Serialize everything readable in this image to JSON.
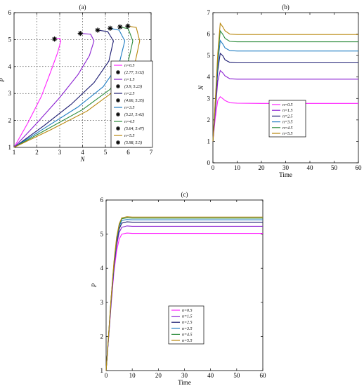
{
  "colors": [
    "#ff22ff",
    "#8a1fd1",
    "#1a1a70",
    "#1f7cc2",
    "#2a8a3a",
    "#b8860b"
  ],
  "chart_data": [
    {
      "id": "a",
      "type": "line",
      "title": "(a)",
      "xlabel": "N",
      "ylabel": "P",
      "xlim": [
        1,
        7
      ],
      "ylim": [
        1,
        6
      ],
      "xticks": [
        1,
        2,
        3,
        4,
        5,
        6,
        7
      ],
      "yticks": [
        1,
        2,
        3,
        4,
        5,
        6
      ],
      "grid": true,
      "legend_position": "right",
      "legend": [
        "n=0.5",
        "(2.77, 5.02)",
        "n=1.5",
        "(3.9, 5.23)",
        "n=2.5",
        "(4.66, 5.35)",
        "n=3.5",
        "(5.21, 5.42)",
        "n=4.5",
        "(5.64, 5.47)",
        "n=5.5",
        "(5.98, 5.5)"
      ],
      "series": [
        {
          "name": "n=0.5",
          "x": [
            1,
            1.6,
            2.2,
            2.6,
            2.9,
            3.05,
            3.0,
            2.77
          ],
          "y": [
            1,
            1.9,
            2.9,
            3.8,
            4.5,
            4.95,
            5.05,
            5.02
          ]
        },
        {
          "name": "n=1.5",
          "x": [
            1,
            2.0,
            3.0,
            3.8,
            4.3,
            4.5,
            4.35,
            3.9
          ],
          "y": [
            1,
            1.9,
            2.85,
            3.7,
            4.4,
            4.95,
            5.2,
            5.23
          ]
        },
        {
          "name": "n=2.5",
          "x": [
            1,
            2.3,
            3.5,
            4.5,
            5.15,
            5.35,
            5.1,
            4.66
          ],
          "y": [
            1,
            1.8,
            2.6,
            3.4,
            4.2,
            4.95,
            5.3,
            5.35
          ]
        },
        {
          "name": "n=3.5",
          "x": [
            1,
            2.4,
            3.8,
            4.9,
            5.6,
            5.85,
            5.6,
            5.21
          ],
          "y": [
            1,
            1.75,
            2.5,
            3.25,
            4.1,
            4.95,
            5.35,
            5.42
          ]
        },
        {
          "name": "n=4.5",
          "x": [
            1,
            2.5,
            4.0,
            5.2,
            5.95,
            6.2,
            6.0,
            5.64
          ],
          "y": [
            1,
            1.7,
            2.4,
            3.15,
            4.0,
            4.95,
            5.4,
            5.47
          ]
        },
        {
          "name": "n=5.5",
          "x": [
            1,
            2.6,
            4.2,
            5.4,
            6.25,
            6.5,
            6.35,
            5.98
          ],
          "y": [
            1,
            1.65,
            2.35,
            3.1,
            3.95,
            4.95,
            5.45,
            5.5
          ]
        }
      ],
      "equilibria": [
        {
          "label": "(2.77, 5.02)",
          "x": 2.77,
          "y": 5.02
        },
        {
          "label": "(3.9, 5.23)",
          "x": 3.9,
          "y": 5.23
        },
        {
          "label": "(4.66, 5.35)",
          "x": 4.66,
          "y": 5.35
        },
        {
          "label": "(5.21, 5.42)",
          "x": 5.21,
          "y": 5.42
        },
        {
          "label": "(5.64, 5.47)",
          "x": 5.64,
          "y": 5.47
        },
        {
          "label": "(5.98, 5.5)",
          "x": 5.98,
          "y": 5.5
        }
      ]
    },
    {
      "id": "b",
      "type": "line",
      "title": "(b)",
      "xlabel": "Time",
      "ylabel": "N",
      "xlim": [
        0,
        60
      ],
      "ylim": [
        0,
        7
      ],
      "xticks": [
        0,
        10,
        20,
        30,
        40,
        50,
        60
      ],
      "yticks": [
        0,
        1,
        2,
        3,
        4,
        5,
        6,
        7
      ],
      "grid": false,
      "legend_position": "bottom-center",
      "legend": [
        "n=0.5",
        "n=1.5",
        "n=2.5",
        "n=3.5",
        "n=4.5",
        "n=5.5"
      ],
      "series": [
        {
          "name": "n=0.5",
          "x": [
            0,
            1,
            2,
            3,
            4,
            5,
            7,
            10,
            20,
            40,
            60
          ],
          "y": [
            1.0,
            2.1,
            2.9,
            3.08,
            3.0,
            2.9,
            2.8,
            2.78,
            2.77,
            2.77,
            2.77
          ]
        },
        {
          "name": "n=1.5",
          "x": [
            0,
            1,
            2,
            3,
            4,
            5,
            7,
            10,
            20,
            40,
            60
          ],
          "y": [
            1.0,
            2.4,
            3.8,
            4.3,
            4.2,
            4.05,
            3.92,
            3.9,
            3.9,
            3.9,
            3.9
          ]
        },
        {
          "name": "n=2.5",
          "x": [
            0,
            1,
            2,
            3,
            4,
            5,
            7,
            10,
            20,
            40,
            60
          ],
          "y": [
            1.0,
            2.6,
            4.3,
            5.1,
            5.0,
            4.8,
            4.68,
            4.66,
            4.66,
            4.66,
            4.66
          ]
        },
        {
          "name": "n=3.5",
          "x": [
            0,
            1,
            2,
            3,
            4,
            5,
            7,
            10,
            20,
            40,
            60
          ],
          "y": [
            1.0,
            2.7,
            4.6,
            5.7,
            5.55,
            5.35,
            5.23,
            5.21,
            5.21,
            5.21,
            5.21
          ]
        },
        {
          "name": "n=4.5",
          "x": [
            0,
            1,
            2,
            3,
            4,
            5,
            7,
            10,
            20,
            40,
            60
          ],
          "y": [
            1.0,
            2.8,
            4.9,
            6.15,
            6.0,
            5.8,
            5.66,
            5.64,
            5.64,
            5.64,
            5.64
          ]
        },
        {
          "name": "n=5.5",
          "x": [
            0,
            1,
            2,
            3,
            4,
            5,
            7,
            10,
            20,
            40,
            60
          ],
          "y": [
            1.0,
            2.9,
            5.1,
            6.5,
            6.35,
            6.15,
            6.0,
            5.98,
            5.98,
            5.98,
            5.98
          ]
        }
      ]
    },
    {
      "id": "c",
      "type": "line",
      "title": "(c)",
      "xlabel": "Time",
      "ylabel": "P",
      "xlim": [
        0,
        60
      ],
      "ylim": [
        1,
        6
      ],
      "xticks": [
        0,
        10,
        20,
        30,
        40,
        50,
        60
      ],
      "yticks": [
        1,
        2,
        3,
        4,
        5,
        6
      ],
      "grid": false,
      "legend_position": "bottom-center",
      "legend": [
        "n=0.5",
        "n=1.5",
        "n=2.5",
        "n=3.5",
        "n=4.5",
        "n=5.5"
      ],
      "series": [
        {
          "name": "n=0.5",
          "x": [
            0,
            1,
            2,
            3,
            4,
            5,
            6,
            8,
            10,
            20,
            40,
            60
          ],
          "y": [
            1.0,
            2.0,
            3.0,
            3.9,
            4.5,
            4.85,
            5.0,
            5.03,
            5.02,
            5.02,
            5.02,
            5.02
          ]
        },
        {
          "name": "n=1.5",
          "x": [
            0,
            1,
            2,
            3,
            4,
            5,
            6,
            8,
            10,
            20,
            40,
            60
          ],
          "y": [
            1.0,
            2.0,
            3.05,
            4.0,
            4.65,
            5.05,
            5.2,
            5.24,
            5.23,
            5.23,
            5.23,
            5.23
          ]
        },
        {
          "name": "n=2.5",
          "x": [
            0,
            1,
            2,
            3,
            4,
            5,
            6,
            8,
            10,
            20,
            40,
            60
          ],
          "y": [
            1.0,
            2.05,
            3.1,
            4.05,
            4.75,
            5.15,
            5.32,
            5.36,
            5.35,
            5.35,
            5.35,
            5.35
          ]
        },
        {
          "name": "n=3.5",
          "x": [
            0,
            1,
            2,
            3,
            4,
            5,
            6,
            8,
            10,
            20,
            40,
            60
          ],
          "y": [
            1.0,
            2.05,
            3.15,
            4.1,
            4.8,
            5.22,
            5.4,
            5.43,
            5.42,
            5.42,
            5.42,
            5.42
          ]
        },
        {
          "name": "n=4.5",
          "x": [
            0,
            1,
            2,
            3,
            4,
            5,
            6,
            8,
            10,
            20,
            40,
            60
          ],
          "y": [
            1.0,
            2.1,
            3.2,
            4.15,
            4.85,
            5.27,
            5.45,
            5.48,
            5.47,
            5.47,
            5.47,
            5.47
          ]
        },
        {
          "name": "n=5.5",
          "x": [
            0,
            1,
            2,
            3,
            4,
            5,
            6,
            8,
            10,
            20,
            40,
            60
          ],
          "y": [
            1.0,
            2.1,
            3.2,
            4.2,
            4.9,
            5.3,
            5.48,
            5.51,
            5.5,
            5.5,
            5.5,
            5.5
          ]
        }
      ]
    }
  ]
}
